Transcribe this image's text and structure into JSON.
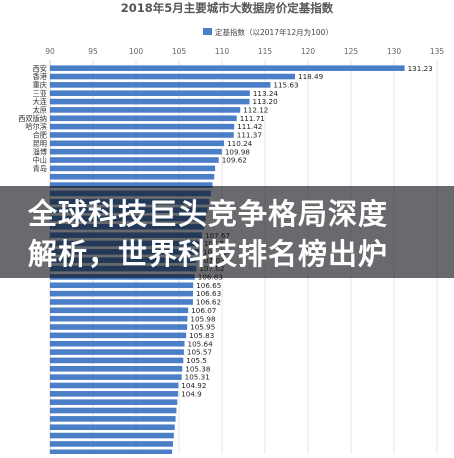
{
  "chart_data": {
    "type": "bar",
    "orientation": "horizontal",
    "title": "2018年5月主要城市大数据房价定基指数",
    "legend": {
      "label": "定基指数（以2017年12月为100）",
      "position": "top-right",
      "color": "#4a7fc8"
    },
    "xlim": [
      90,
      135
    ],
    "xticks": [
      90,
      95,
      100,
      105,
      110,
      115,
      120,
      125,
      130,
      135
    ],
    "grid": true,
    "categories": [
      "西安",
      "香港",
      "重庆",
      "三亚",
      "大连",
      "太原",
      "西双版纳",
      "哈尔滨",
      "合肥",
      "昆明",
      "淄博",
      "中山",
      "青岛",
      "",
      "",
      "",
      "",
      "",
      "",
      "",
      "",
      "",
      "",
      "",
      "",
      "",
      "",
      "",
      "",
      "",
      "",
      "",
      "",
      "",
      "",
      "",
      "",
      "",
      "",
      "",
      "",
      "",
      "",
      "",
      "",
      "",
      ""
    ],
    "values": [
      131.23,
      118.49,
      115.63,
      113.24,
      113.2,
      112.12,
      111.71,
      111.42,
      111.37,
      110.24,
      109.98,
      109.62,
      109.2,
      109.1,
      108.9,
      108.7,
      108.5,
      108.3,
      108.1,
      107.9,
      107.67,
      107.54,
      107.43,
      107.03,
      107.02,
      106.83,
      106.65,
      106.63,
      106.62,
      106.07,
      105.98,
      105.95,
      105.83,
      105.64,
      105.57,
      105.5,
      105.38,
      105.31,
      104.92,
      104.9,
      104.8,
      104.7,
      104.6,
      104.5,
      104.4,
      104.3,
      104.2
    ],
    "data_labels": [
      "131.23",
      "118.49",
      "115.63",
      "113.24",
      "113.20",
      "112.12",
      "111.71",
      "111.42",
      "111.37",
      "110.24",
      "109.98",
      "109.62",
      "",
      "",
      "",
      "",
      "",
      "",
      "",
      "",
      "107.67",
      "107.54",
      "107.43",
      "107.03",
      "107.02",
      "106.83",
      "106.65",
      "106.63",
      "106.62",
      "106.07",
      "105.98",
      "105.95",
      "105.83",
      "105.64",
      "105.57",
      "105.5",
      "105.38",
      "105.31",
      "104.92",
      "104.9",
      "",
      "",
      "",
      "",
      "",
      "",
      ""
    ]
  },
  "banner": {
    "line1": "全球科技巨头竞争格局深度",
    "line2": "解析，世界科技排名榜出炉"
  },
  "colors": {
    "bar": "#4a7fc8",
    "grid": "#e6e6e6",
    "overlay": "#0c0e14"
  }
}
